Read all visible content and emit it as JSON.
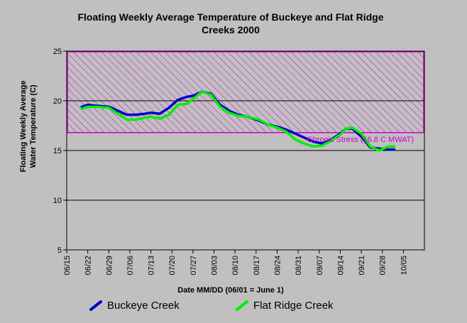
{
  "chart_data": {
    "type": "line",
    "title_lines": [
      "Floating Weekly Average Temperature of Buckeye and Flat Ridge",
      "Creeks 2000"
    ],
    "xlabel": "Date MM/DD (06/01 = June 1)",
    "ylabel_lines": [
      "Floating Weekly Average",
      "Water Temperature (C)"
    ],
    "ylim": [
      5,
      25
    ],
    "yticks": [
      5,
      10,
      15,
      20,
      25
    ],
    "xlim": [
      "06/15",
      "10/12"
    ],
    "xticks": [
      "06/15",
      "06/22",
      "06/29",
      "07/06",
      "07/13",
      "07/20",
      "07/27",
      "08/03",
      "08/10",
      "08/17",
      "08/24",
      "08/31",
      "09/07",
      "09/14",
      "09/21",
      "09/28",
      "10/05"
    ],
    "gridlines_y": [
      10,
      15,
      20
    ],
    "stress_zone": {
      "from": 16.8,
      "to": 25,
      "label": "Chronic Stress (16.8 C MWAT)",
      "color": "#cc00cc"
    },
    "series": [
      {
        "name": "Buckeye Creek",
        "color": "#0000cc",
        "points": [
          [
            "06/20",
            19.4
          ],
          [
            "06/22",
            19.6
          ],
          [
            "06/25",
            19.5
          ],
          [
            "06/29",
            19.4
          ],
          [
            "07/02",
            19.0
          ],
          [
            "07/05",
            18.6
          ],
          [
            "07/08",
            18.6
          ],
          [
            "07/11",
            18.7
          ],
          [
            "07/13",
            18.8
          ],
          [
            "07/16",
            18.7
          ],
          [
            "07/19",
            19.3
          ],
          [
            "07/22",
            20.1
          ],
          [
            "07/25",
            20.4
          ],
          [
            "07/27",
            20.5
          ],
          [
            "07/30",
            20.9
          ],
          [
            "08/02",
            20.7
          ],
          [
            "08/05",
            19.6
          ],
          [
            "08/08",
            19.0
          ],
          [
            "08/11",
            18.6
          ],
          [
            "08/14",
            18.4
          ],
          [
            "08/18",
            18.0
          ],
          [
            "08/21",
            17.6
          ],
          [
            "08/24",
            17.4
          ],
          [
            "08/27",
            17.1
          ],
          [
            "08/30",
            16.7
          ],
          [
            "09/02",
            16.3
          ],
          [
            "09/05",
            15.9
          ],
          [
            "09/08",
            15.7
          ],
          [
            "09/11",
            16.1
          ],
          [
            "09/14",
            16.7
          ],
          [
            "09/16",
            17.2
          ],
          [
            "09/18",
            17.2
          ],
          [
            "09/21",
            16.4
          ],
          [
            "09/24",
            15.3
          ],
          [
            "09/27",
            15.2
          ],
          [
            "09/30",
            15.1
          ],
          [
            "10/02",
            15.1
          ]
        ]
      },
      {
        "name": "Flat Ridge Creek",
        "color": "#00ee00",
        "points": [
          [
            "06/20",
            19.2
          ],
          [
            "06/22",
            19.4
          ],
          [
            "06/25",
            19.4
          ],
          [
            "06/29",
            19.3
          ],
          [
            "07/02",
            18.7
          ],
          [
            "07/05",
            18.1
          ],
          [
            "07/08",
            18.1
          ],
          [
            "07/11",
            18.3
          ],
          [
            "07/13",
            18.4
          ],
          [
            "07/16",
            18.2
          ],
          [
            "07/19",
            18.6
          ],
          [
            "07/22",
            19.6
          ],
          [
            "07/25",
            19.7
          ],
          [
            "07/27",
            20.2
          ],
          [
            "07/30",
            20.9
          ],
          [
            "08/02",
            20.6
          ],
          [
            "08/05",
            19.4
          ],
          [
            "08/08",
            18.8
          ],
          [
            "08/11",
            18.5
          ],
          [
            "08/14",
            18.4
          ],
          [
            "08/18",
            18.1
          ],
          [
            "08/21",
            17.6
          ],
          [
            "08/24",
            17.3
          ],
          [
            "08/27",
            16.9
          ],
          [
            "08/30",
            16.1
          ],
          [
            "09/02",
            15.7
          ],
          [
            "09/05",
            15.4
          ],
          [
            "09/08",
            15.5
          ],
          [
            "09/11",
            16.0
          ],
          [
            "09/14",
            16.6
          ],
          [
            "09/16",
            17.2
          ],
          [
            "09/18",
            17.3
          ],
          [
            "09/21",
            16.7
          ],
          [
            "09/24",
            15.4
          ],
          [
            "09/27",
            15.0
          ],
          [
            "09/30",
            15.4
          ],
          [
            "10/02",
            15.4
          ]
        ]
      }
    ],
    "legend": [
      {
        "label": "Buckeye Creek",
        "color": "#0000cc"
      },
      {
        "label": "Flat Ridge Creek",
        "color": "#00ee00"
      }
    ]
  }
}
